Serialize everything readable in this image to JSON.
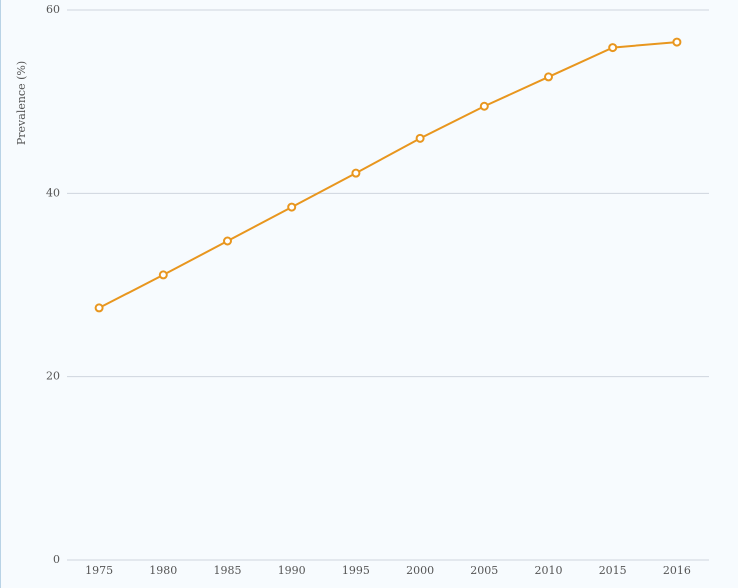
{
  "chart_data": {
    "type": "line",
    "y_label": "Prevalence (%)",
    "categories": [
      "1975",
      "1980",
      "1985",
      "1990",
      "1995",
      "2000",
      "2005",
      "2010",
      "2015",
      "2016"
    ],
    "series": [
      {
        "color": "#e8961e",
        "values": [
          27.5,
          31.1,
          34.8,
          38.5,
          42.2,
          46.0,
          49.5,
          52.7,
          55.9,
          56.5
        ]
      }
    ],
    "ylim": [
      0,
      60
    ],
    "yticks": [
      0,
      20,
      40,
      60
    ],
    "grid": true
  }
}
